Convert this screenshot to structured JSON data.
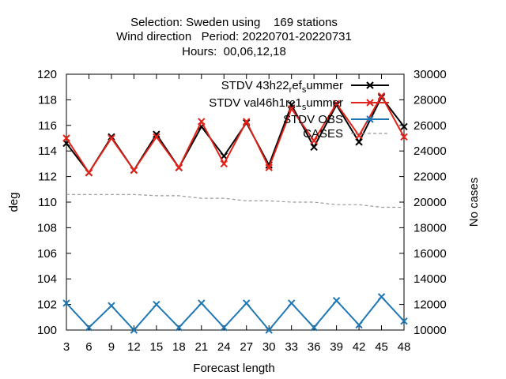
{
  "chart_data": {
    "type": "line",
    "title_lines": [
      "Selection: Sweden using    169 stations",
      "Wind direction   Period: 20220701-20220731",
      "Hours:  00,06,12,18"
    ],
    "xlabel": "Forecast length",
    "ylabel": "deg",
    "y2label": "No cases",
    "x": [
      3,
      6,
      9,
      12,
      15,
      18,
      21,
      24,
      27,
      30,
      33,
      36,
      39,
      42,
      45,
      48
    ],
    "xlim": [
      3,
      48
    ],
    "ylim": [
      100,
      120
    ],
    "y2lim": [
      10000,
      30000
    ],
    "xticks": [
      "3",
      "6",
      "9",
      "12",
      "15",
      "18",
      "21",
      "24",
      "27",
      "30",
      "33",
      "36",
      "39",
      "42",
      "45",
      "48"
    ],
    "yticks": [
      "100",
      "102",
      "104",
      "106",
      "108",
      "110",
      "112",
      "114",
      "116",
      "118",
      "120"
    ],
    "y2ticks": [
      "10000",
      "12000",
      "14000",
      "16000",
      "18000",
      "20000",
      "22000",
      "24000",
      "26000",
      "28000",
      "30000"
    ],
    "grid": false,
    "legend_position": "top-right",
    "series": [
      {
        "name": "STDV 43h22_ref_summer",
        "legend": {
          "p1": "STDV 43h22",
          "sub1": "r",
          "p2": "ef",
          "sub2": "s",
          "p3": "ummer"
        },
        "color": "#000000",
        "marker": "x",
        "axis": "y1",
        "values": [
          114.6,
          112.3,
          115.1,
          112.5,
          115.3,
          112.7,
          115.9,
          113.6,
          116.2,
          112.9,
          117.6,
          114.3,
          117.6,
          114.7,
          118.2,
          115.9
        ]
      },
      {
        "name": "STDV val46h1rc1_summer",
        "legend": {
          "p1": "STDV val46h1rc1",
          "sub1": "",
          "p2": "",
          "sub2": "s",
          "p3": "ummer"
        },
        "color": "#e2231a",
        "marker": "x",
        "axis": "y1",
        "values": [
          115.0,
          112.3,
          115.0,
          112.5,
          115.1,
          112.7,
          116.3,
          113.0,
          116.3,
          112.7,
          117.3,
          114.8,
          117.7,
          115.2,
          118.3,
          115.1
        ]
      },
      {
        "name": "STDV OBS",
        "legend": {
          "p1": "STDV OBS",
          "sub1": "",
          "p2": "",
          "sub2": "",
          "p3": ""
        },
        "color": "#1f77b4",
        "marker": "x",
        "axis": "y1",
        "values": [
          102.1,
          100.2,
          101.9,
          100.0,
          102.0,
          100.2,
          102.1,
          100.2,
          102.1,
          100.0,
          102.1,
          100.2,
          102.3,
          100.4,
          102.6,
          100.7
        ]
      },
      {
        "name": "CASES",
        "legend": {
          "p1": "CASES",
          "sub1": "",
          "p2": "",
          "sub2": "",
          "p3": ""
        },
        "color": "#999999",
        "dashed": true,
        "axis": "y2",
        "values": [
          20600,
          20600,
          20600,
          20600,
          20500,
          20500,
          20300,
          20300,
          20100,
          20100,
          20000,
          20000,
          19800,
          19800,
          19600,
          19600
        ]
      }
    ]
  }
}
